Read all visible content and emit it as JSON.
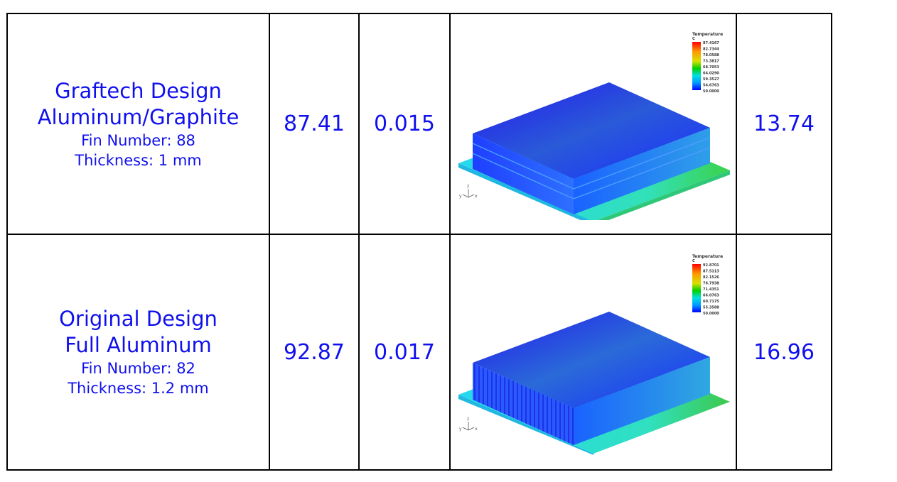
{
  "rows": [
    {
      "design_name": "Graftech Design",
      "material": "Aluminum/Graphite",
      "fin_number": "Fin Number: 88",
      "thickness": "Thickness: 1 mm",
      "max_temp": "87.41",
      "resistance": "0.015",
      "last_value": "13.74",
      "colorbar": {
        "title": "Temperature",
        "unit": "C",
        "values": [
          "87.4167",
          "82.7344",
          "78.0588",
          "73.3817",
          "68.7053",
          "64.0290",
          "59.3527",
          "54.6763",
          "50.0000"
        ]
      }
    },
    {
      "design_name": "Original Design",
      "material": "Full Aluminum",
      "fin_number": "Fin Number: 82",
      "thickness": "Thickness: 1.2 mm",
      "max_temp": "92.87",
      "resistance": "0.017",
      "last_value": "16.96",
      "colorbar": {
        "title": "Temperature",
        "unit": "C",
        "values": [
          "92.8701",
          "87.5113",
          "82.1526",
          "76.7938",
          "71.4351",
          "66.0763",
          "60.7175",
          "55.3588",
          "50.0000"
        ]
      }
    }
  ],
  "colors": {
    "text": "#1010ee",
    "border": "#000000",
    "hot": "#ff0000",
    "cold": "#1a2fff"
  },
  "axis_labels": {
    "z": "z",
    "y": "y",
    "x": "x"
  }
}
